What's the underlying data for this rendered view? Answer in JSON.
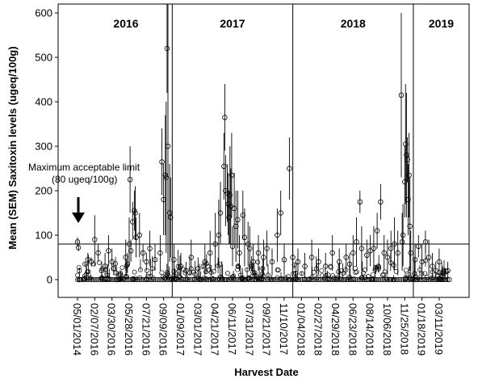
{
  "chart_data": {
    "type": "scatter",
    "title": "",
    "xlabel": "Harvest Date",
    "ylabel": "Mean (SEM) Saxitoxin levels (ugeq/100g)",
    "ylim": [
      -40,
      620
    ],
    "y_ticks": [
      0,
      100,
      200,
      300,
      400,
      500,
      600
    ],
    "x_tick_labels": [
      "05/01/2014",
      "02/07/2016",
      "03/30/2016",
      "05/28/2016",
      "07/21/2016",
      "09/09/2016",
      "01/09/2017",
      "03/01/2017",
      "04/21/2017",
      "06/11/2017",
      "07/31/2017",
      "09/21/2017",
      "11/10/2017",
      "01/04/2018",
      "02/27/2018",
      "04/29/2018",
      "06/23/2018",
      "08/14/2018",
      "10/06/2018",
      "11/25/2018",
      "01/18/2019",
      "03/11/2019"
    ],
    "year_labels": [
      "2016",
      "2017",
      "2018",
      "2019"
    ],
    "year_boundaries_after_tick": [
      5.5,
      12.5,
      19.5
    ],
    "reference_line": {
      "y": 80,
      "label_line1": "Maximum acceptable limit",
      "label_line2": "(80 ugeq/100g)"
    },
    "grid": false,
    "series": [
      {
        "points": [
          [
            0.0,
            85,
            95,
            75
          ],
          [
            0.05,
            72,
            80,
            64
          ],
          [
            0.1,
            0,
            0,
            0
          ],
          [
            0.6,
            45,
            60,
            30
          ],
          [
            0.8,
            40,
            50,
            30
          ],
          [
            1.0,
            90,
            145,
            30
          ],
          [
            1.2,
            60,
            80,
            40
          ],
          [
            1.4,
            20,
            40,
            5
          ],
          [
            1.6,
            30,
            60,
            10
          ],
          [
            1.8,
            65,
            100,
            30
          ],
          [
            2.0,
            40,
            70,
            20
          ],
          [
            2.1,
            25,
            40,
            10
          ],
          [
            2.3,
            0,
            0,
            0
          ],
          [
            2.5,
            10,
            20,
            0
          ],
          [
            2.8,
            50,
            90,
            20
          ],
          [
            2.9,
            35,
            60,
            15
          ],
          [
            3.0,
            80,
            140,
            30
          ],
          [
            3.05,
            225,
            300,
            150
          ],
          [
            3.1,
            65,
            90,
            40
          ],
          [
            3.2,
            130,
            175,
            90
          ],
          [
            3.3,
            155,
            200,
            110
          ],
          [
            3.35,
            150,
            210,
            90
          ],
          [
            3.4,
            95,
            140,
            50
          ],
          [
            3.6,
            100,
            150,
            50
          ],
          [
            3.8,
            60,
            80,
            40
          ],
          [
            4.0,
            40,
            60,
            20
          ],
          [
            4.2,
            70,
            110,
            30
          ],
          [
            4.5,
            45,
            80,
            20
          ],
          [
            4.8,
            60,
            100,
            20
          ],
          [
            4.9,
            265,
            340,
            190
          ],
          [
            5.0,
            180,
            260,
            100
          ],
          [
            5.1,
            235,
            370,
            100
          ],
          [
            5.15,
            230,
            400,
            60
          ],
          [
            5.2,
            520,
            620,
            420
          ],
          [
            5.25,
            300,
            620,
            0
          ],
          [
            5.35,
            150,
            260,
            40
          ],
          [
            5.4,
            140,
            230,
            50
          ],
          [
            5.6,
            45,
            80,
            10
          ],
          [
            6.0,
            30,
            60,
            5
          ],
          [
            6.3,
            20,
            40,
            5
          ],
          [
            6.6,
            50,
            90,
            10
          ],
          [
            7.0,
            25,
            50,
            5
          ],
          [
            7.4,
            40,
            80,
            10
          ],
          [
            7.7,
            60,
            110,
            20
          ],
          [
            8.0,
            80,
            150,
            20
          ],
          [
            8.2,
            100,
            180,
            30
          ],
          [
            8.3,
            150,
            220,
            80
          ],
          [
            8.5,
            255,
            330,
            180
          ],
          [
            8.55,
            365,
            440,
            290
          ],
          [
            8.6,
            200,
            280,
            120
          ],
          [
            8.7,
            195,
            260,
            130
          ],
          [
            8.75,
            170,
            240,
            100
          ],
          [
            8.8,
            140,
            200,
            80
          ],
          [
            8.85,
            190,
            300,
            80
          ],
          [
            8.9,
            165,
            250,
            80
          ],
          [
            8.95,
            235,
            330,
            140
          ],
          [
            9.0,
            75,
            120,
            30
          ],
          [
            9.1,
            160,
            240,
            80
          ],
          [
            9.2,
            120,
            200,
            40
          ],
          [
            9.3,
            135,
            200,
            70
          ],
          [
            9.4,
            60,
            100,
            20
          ],
          [
            9.6,
            145,
            200,
            90
          ],
          [
            9.7,
            95,
            160,
            30
          ],
          [
            9.9,
            80,
            130,
            30
          ],
          [
            10.0,
            70,
            120,
            20
          ],
          [
            10.2,
            40,
            80,
            10
          ],
          [
            10.5,
            60,
            100,
            20
          ],
          [
            10.8,
            50,
            90,
            10
          ],
          [
            11.0,
            70,
            110,
            30
          ],
          [
            11.3,
            40,
            70,
            10
          ],
          [
            11.6,
            100,
            160,
            40
          ],
          [
            11.8,
            150,
            200,
            100
          ],
          [
            12.0,
            45,
            80,
            10
          ],
          [
            12.3,
            250,
            320,
            180
          ],
          [
            12.5,
            50,
            90,
            10
          ],
          [
            12.8,
            40,
            70,
            10
          ],
          [
            13.2,
            30,
            60,
            5
          ],
          [
            13.6,
            50,
            90,
            10
          ],
          [
            14.0,
            40,
            70,
            10
          ],
          [
            14.4,
            30,
            60,
            5
          ],
          [
            14.8,
            60,
            100,
            20
          ],
          [
            15.2,
            40,
            70,
            10
          ],
          [
            15.6,
            50,
            80,
            20
          ],
          [
            15.8,
            35,
            60,
            10
          ],
          [
            16.0,
            60,
            100,
            20
          ],
          [
            16.2,
            85,
            140,
            30
          ],
          [
            16.4,
            175,
            200,
            150
          ],
          [
            16.5,
            70,
            120,
            20
          ],
          [
            16.8,
            55,
            90,
            20
          ],
          [
            17.0,
            65,
            100,
            30
          ],
          [
            17.2,
            70,
            120,
            20
          ],
          [
            17.4,
            110,
            150,
            70
          ],
          [
            17.6,
            175,
            215,
            135
          ],
          [
            17.8,
            60,
            100,
            20
          ],
          [
            18.0,
            50,
            90,
            10
          ],
          [
            18.2,
            70,
            110,
            30
          ],
          [
            18.4,
            80,
            140,
            20
          ],
          [
            18.6,
            60,
            110,
            10
          ],
          [
            18.8,
            415,
            600,
            230
          ],
          [
            18.85,
            85,
            150,
            20
          ],
          [
            18.9,
            100,
            170,
            30
          ],
          [
            19.0,
            220,
            300,
            140
          ],
          [
            19.05,
            305,
            440,
            170
          ],
          [
            19.1,
            280,
            420,
            140
          ],
          [
            19.15,
            270,
            320,
            220
          ],
          [
            19.2,
            180,
            260,
            100
          ],
          [
            19.25,
            235,
            330,
            140
          ],
          [
            19.3,
            120,
            230,
            20
          ],
          [
            19.35,
            60,
            110,
            10
          ],
          [
            19.6,
            45,
            80,
            10
          ],
          [
            19.8,
            75,
            100,
            50
          ],
          [
            20.0,
            40,
            80,
            5
          ],
          [
            20.2,
            85,
            110,
            60
          ],
          [
            20.4,
            50,
            90,
            10
          ],
          [
            20.6,
            30,
            60,
            5
          ],
          [
            20.8,
            20,
            40,
            5
          ],
          [
            21.0,
            40,
            70,
            10
          ],
          [
            21.2,
            15,
            30,
            0
          ],
          [
            21.5,
            20,
            40,
            0
          ]
        ]
      }
    ]
  }
}
